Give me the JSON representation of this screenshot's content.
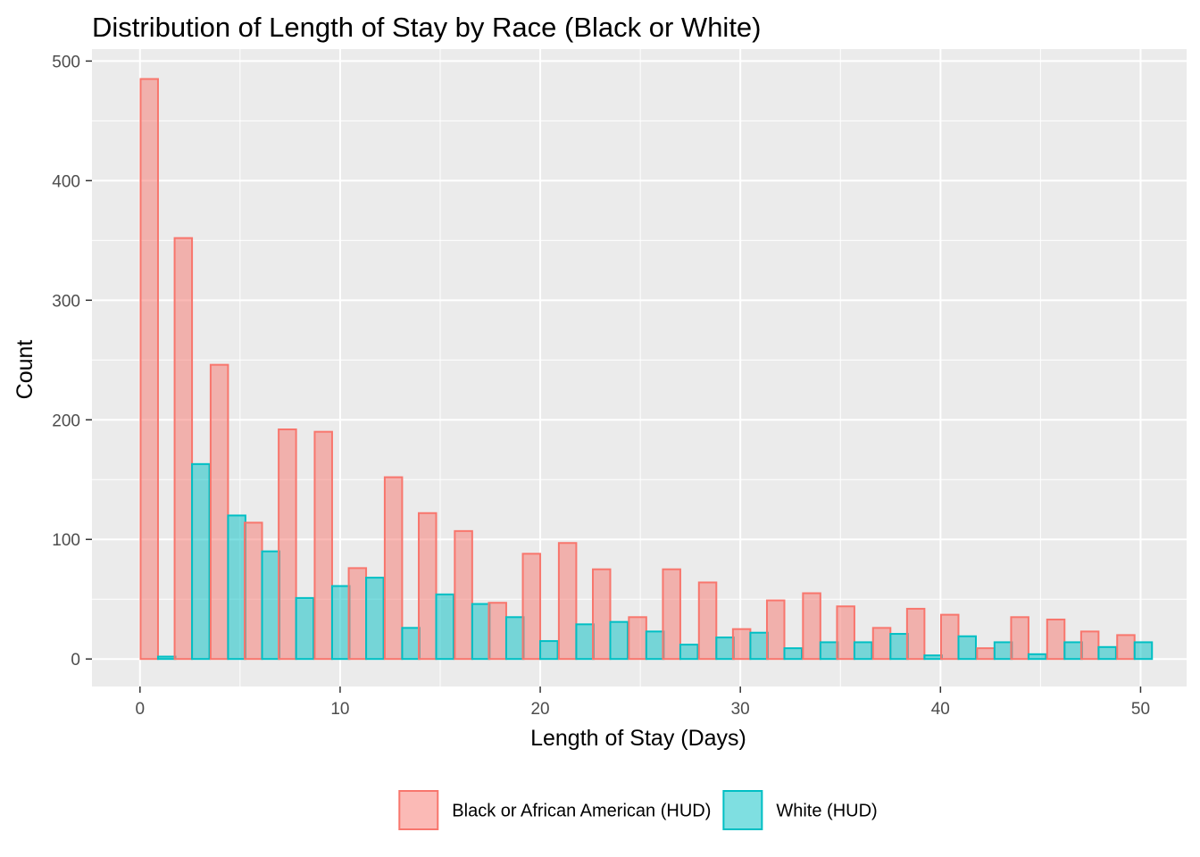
{
  "chart_data": {
    "type": "bar",
    "title": "Distribution of Length of Stay by Race (Black or White)",
    "xlabel": "Length of Stay (Days)",
    "ylabel": "Count",
    "xlim": [
      -2.4,
      52.3
    ],
    "ylim": [
      -23,
      510
    ],
    "x_ticks": [
      0,
      10,
      20,
      30,
      40,
      50
    ],
    "y_ticks": [
      0,
      100,
      200,
      300,
      400,
      500
    ],
    "x_tick_labels": [
      "0",
      "10",
      "20",
      "30",
      "40",
      "50"
    ],
    "y_tick_labels": [
      "0",
      "100",
      "200",
      "300",
      "400",
      "500"
    ],
    "grid": true,
    "legend_position": "bottom",
    "bin_width": 1.74,
    "categories": [
      0.9,
      2.6,
      4.4,
      6.1,
      7.8,
      9.6,
      11.3,
      13.1,
      14.8,
      16.6,
      18.3,
      20.0,
      21.8,
      23.5,
      25.3,
      27.0,
      28.8,
      30.5,
      32.2,
      34.0,
      35.7,
      37.5,
      39.2,
      40.9,
      42.7,
      44.4,
      46.2,
      47.9,
      49.7
    ],
    "series": [
      {
        "name": "Black or African American (HUD)",
        "fill": "#f8766d",
        "values": [
          485,
          352,
          246,
          114,
          192,
          190,
          76,
          152,
          122,
          107,
          47,
          88,
          97,
          75,
          35,
          75,
          64,
          25,
          49,
          55,
          44,
          26,
          42,
          37,
          9,
          35,
          33,
          23,
          20
        ]
      },
      {
        "name": "White (HUD)",
        "fill": "#00bfc4",
        "values": [
          2,
          163,
          120,
          90,
          51,
          61,
          68,
          26,
          54,
          46,
          35,
          15,
          29,
          31,
          23,
          12,
          18,
          22,
          9,
          14,
          14,
          21,
          3,
          19,
          14,
          4,
          14,
          10,
          14
        ]
      }
    ]
  }
}
